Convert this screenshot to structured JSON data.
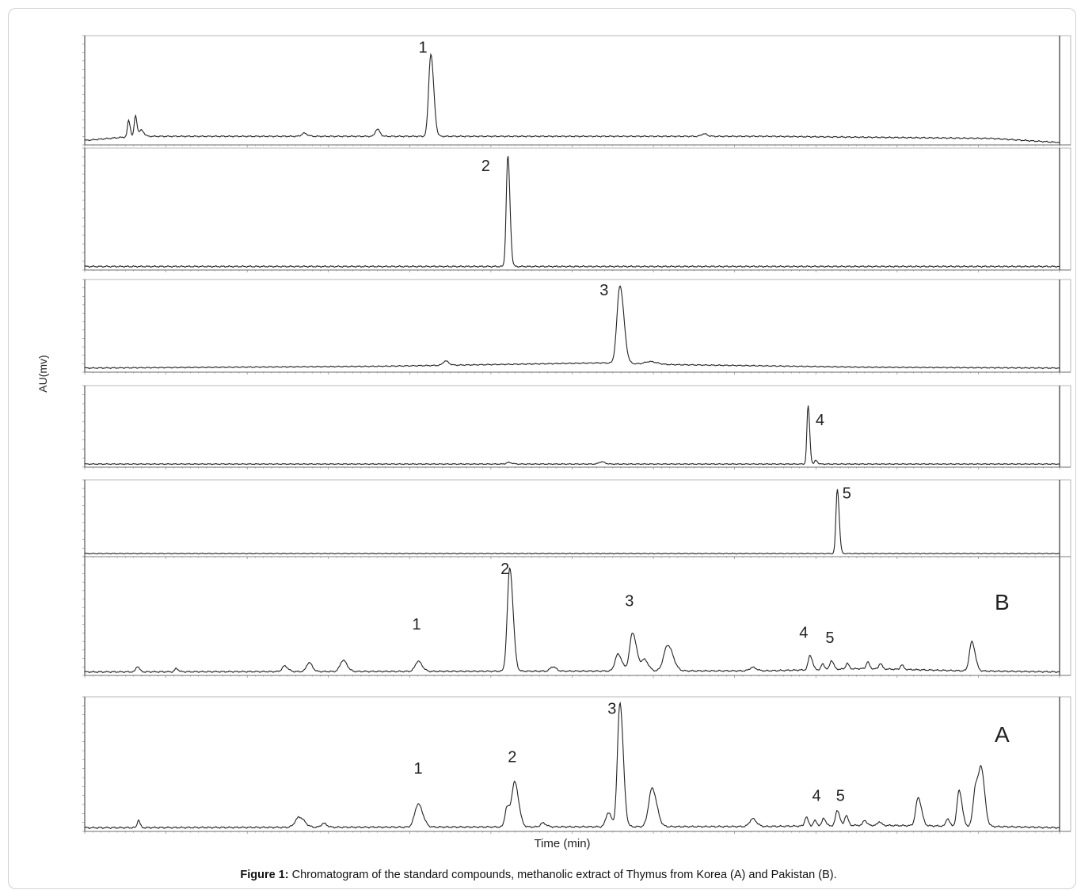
{
  "chart_data": {
    "type": "line",
    "y_axis_label": "AU(mv)",
    "x_axis_label": "Time (min)",
    "grid": false,
    "panels": [
      {
        "name": "standard-1",
        "panel_letter": "",
        "trace_color": "#222222",
        "peaks": [
          {
            "label": "1",
            "x": 0.355,
            "h": 0.8,
            "w": 0.0022,
            "labeled": true
          },
          {
            "label": "",
            "x": 0.045,
            "h": 0.16,
            "w": 0.0012
          },
          {
            "label": "",
            "x": 0.052,
            "h": 0.2,
            "w": 0.0012
          },
          {
            "label": "",
            "x": 0.058,
            "h": 0.06,
            "w": 0.002
          },
          {
            "label": "",
            "x": 0.225,
            "h": 0.03,
            "w": 0.0025
          },
          {
            "label": "",
            "x": 0.3,
            "h": 0.07,
            "w": 0.002
          },
          {
            "label": "",
            "x": 0.635,
            "h": 0.025,
            "w": 0.0025
          }
        ],
        "baseline": [
          [
            0.0,
            0.02
          ],
          [
            0.05,
            0.06
          ],
          [
            0.3,
            0.06
          ],
          [
            0.7,
            0.06
          ],
          [
            0.93,
            0.04
          ],
          [
            1.0,
            0.0
          ]
        ]
      },
      {
        "name": "standard-2",
        "panel_letter": "",
        "trace_color": "#222222",
        "peaks": [
          {
            "label": "2",
            "x": 0.434,
            "h": 0.96,
            "w": 0.0016,
            "labeled": true
          }
        ],
        "baseline": [
          [
            0.0,
            0.01
          ],
          [
            1.0,
            0.01
          ]
        ]
      },
      {
        "name": "standard-3",
        "panel_letter": "",
        "trace_color": "#222222",
        "peaks": [
          {
            "label": "3",
            "x": 0.549,
            "h": 0.9,
            "w": 0.003,
            "labeled": true
          },
          {
            "label": "",
            "x": 0.37,
            "h": 0.05,
            "w": 0.0025
          },
          {
            "label": "",
            "x": 0.58,
            "h": 0.03,
            "w": 0.005
          }
        ],
        "baseline": [
          [
            0.0,
            0.02
          ],
          [
            0.3,
            0.04
          ],
          [
            0.53,
            0.08
          ],
          [
            0.6,
            0.06
          ],
          [
            0.8,
            0.03
          ],
          [
            1.0,
            0.02
          ]
        ]
      },
      {
        "name": "standard-4",
        "panel_letter": "",
        "trace_color": "#222222",
        "peaks": [
          {
            "label": "4",
            "x": 0.742,
            "h": 0.78,
            "w": 0.0012,
            "labeled": true
          },
          {
            "label": "",
            "x": 0.75,
            "h": 0.05,
            "w": 0.0012
          },
          {
            "label": "",
            "x": 0.435,
            "h": 0.02,
            "w": 0.0025
          },
          {
            "label": "",
            "x": 0.53,
            "h": 0.03,
            "w": 0.0025
          }
        ],
        "baseline": [
          [
            0.0,
            0.01
          ],
          [
            1.0,
            0.01
          ]
        ]
      },
      {
        "name": "standard-5",
        "panel_letter": "",
        "trace_color": "#222222",
        "peaks": [
          {
            "label": "5",
            "x": 0.772,
            "h": 0.92,
            "w": 0.0014,
            "labeled": true
          }
        ],
        "baseline": [
          [
            0.0,
            0.01
          ],
          [
            1.0,
            0.01
          ]
        ]
      },
      {
        "name": "pakistan-extract",
        "panel_letter": "B",
        "trace_color": "#222222",
        "peaks": [
          {
            "label": "2",
            "x": 0.436,
            "h": 0.92,
            "w": 0.0025,
            "labeled": true
          },
          {
            "label": "1",
            "x": 0.342,
            "h": 0.09,
            "w": 0.003,
            "labeled": true
          },
          {
            "label": "3",
            "x": 0.562,
            "h": 0.34,
            "w": 0.003,
            "labeled": true
          },
          {
            "label": "4",
            "x": 0.744,
            "h": 0.13,
            "w": 0.0018,
            "labeled": true
          },
          {
            "label": "5",
            "x": 0.766,
            "h": 0.08,
            "w": 0.0016,
            "labeled": true
          },
          {
            "label": "",
            "x": 0.054,
            "h": 0.05,
            "w": 0.0015
          },
          {
            "label": "",
            "x": 0.094,
            "h": 0.03,
            "w": 0.0015
          },
          {
            "label": "",
            "x": 0.205,
            "h": 0.05,
            "w": 0.0025
          },
          {
            "label": "",
            "x": 0.23,
            "h": 0.08,
            "w": 0.0025
          },
          {
            "label": "",
            "x": 0.265,
            "h": 0.1,
            "w": 0.003
          },
          {
            "label": "",
            "x": 0.48,
            "h": 0.04,
            "w": 0.0025
          },
          {
            "label": "",
            "x": 0.547,
            "h": 0.15,
            "w": 0.003
          },
          {
            "label": "",
            "x": 0.574,
            "h": 0.1,
            "w": 0.003
          },
          {
            "label": "",
            "x": 0.598,
            "h": 0.23,
            "w": 0.004
          },
          {
            "label": "",
            "x": 0.685,
            "h": 0.03,
            "w": 0.003
          },
          {
            "label": "",
            "x": 0.757,
            "h": 0.05,
            "w": 0.0014
          },
          {
            "label": "",
            "x": 0.782,
            "h": 0.05,
            "w": 0.0014
          },
          {
            "label": "",
            "x": 0.803,
            "h": 0.06,
            "w": 0.0014
          },
          {
            "label": "",
            "x": 0.816,
            "h": 0.05,
            "w": 0.0014
          },
          {
            "label": "",
            "x": 0.838,
            "h": 0.04,
            "w": 0.0014
          },
          {
            "label": "",
            "x": 0.91,
            "h": 0.26,
            "w": 0.0025
          }
        ],
        "baseline": [
          [
            0.0,
            0.01
          ],
          [
            0.7,
            0.02
          ],
          [
            0.8,
            0.04
          ],
          [
            0.9,
            0.02
          ],
          [
            1.0,
            0.01
          ]
        ]
      },
      {
        "name": "korea-extract",
        "panel_letter": "A",
        "trace_color": "#222222",
        "peaks": [
          {
            "label": "3",
            "x": 0.549,
            "h": 0.97,
            "w": 0.0025,
            "labeled": true
          },
          {
            "label": "1",
            "x": 0.342,
            "h": 0.18,
            "w": 0.0035,
            "labeled": true
          },
          {
            "label": "2",
            "x": 0.441,
            "h": 0.35,
            "w": 0.003,
            "labeled": true
          },
          {
            "label": "4",
            "x": 0.749,
            "h": 0.04,
            "w": 0.0015,
            "labeled": true
          },
          {
            "label": "5",
            "x": 0.772,
            "h": 0.12,
            "w": 0.0018,
            "labeled": true
          },
          {
            "label": "",
            "x": 0.055,
            "h": 0.06,
            "w": 0.0012
          },
          {
            "label": "",
            "x": 0.22,
            "h": 0.08,
            "w": 0.004
          },
          {
            "label": "",
            "x": 0.245,
            "h": 0.03,
            "w": 0.0025
          },
          {
            "label": "",
            "x": 0.433,
            "h": 0.15,
            "w": 0.002
          },
          {
            "label": "",
            "x": 0.47,
            "h": 0.03,
            "w": 0.0025
          },
          {
            "label": "",
            "x": 0.537,
            "h": 0.11,
            "w": 0.0025
          },
          {
            "label": "",
            "x": 0.582,
            "h": 0.3,
            "w": 0.0035
          },
          {
            "label": "",
            "x": 0.685,
            "h": 0.06,
            "w": 0.003
          },
          {
            "label": "",
            "x": 0.74,
            "h": 0.07,
            "w": 0.0015
          },
          {
            "label": "",
            "x": 0.758,
            "h": 0.06,
            "w": 0.0015
          },
          {
            "label": "",
            "x": 0.781,
            "h": 0.08,
            "w": 0.0015
          },
          {
            "label": "",
            "x": 0.8,
            "h": 0.04,
            "w": 0.0015
          },
          {
            "label": "",
            "x": 0.815,
            "h": 0.03,
            "w": 0.0015
          },
          {
            "label": "",
            "x": 0.855,
            "h": 0.22,
            "w": 0.0025
          },
          {
            "label": "",
            "x": 0.885,
            "h": 0.06,
            "w": 0.0015
          },
          {
            "label": "",
            "x": 0.897,
            "h": 0.28,
            "w": 0.0022
          },
          {
            "label": "",
            "x": 0.914,
            "h": 0.32,
            "w": 0.0025
          },
          {
            "label": "",
            "x": 0.92,
            "h": 0.4,
            "w": 0.0025
          }
        ],
        "baseline": [
          [
            0.0,
            0.01
          ],
          [
            0.7,
            0.02
          ],
          [
            0.8,
            0.03
          ],
          [
            0.93,
            0.02
          ],
          [
            1.0,
            0.01
          ]
        ]
      }
    ]
  },
  "figure": {
    "y_label": "AU(mv)",
    "x_label": "Time (min)",
    "caption_bold": "Figure 1:",
    "caption_text": " Chromatogram of the standard compounds, methanolic extract of Thymus from Korea (A) and Pakistan (B)."
  }
}
